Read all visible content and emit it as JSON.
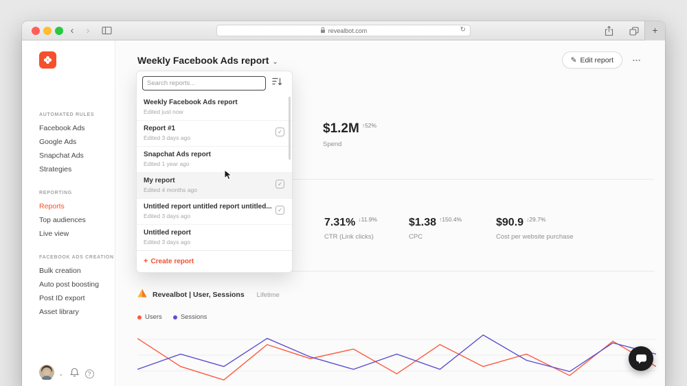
{
  "app": {
    "accent": "#f4502c"
  },
  "browser": {
    "url": "revealbot.com",
    "back": "‹",
    "forward": "›",
    "refresh": "↻",
    "new_tab": "+",
    "traffic_lights": [
      "#ff5f57",
      "#febc2e",
      "#28c840"
    ]
  },
  "sidebar": {
    "sections": [
      {
        "title": "AUTOMATED RULES",
        "items": [
          {
            "label": "Facebook Ads"
          },
          {
            "label": "Google Ads"
          },
          {
            "label": "Snapchat Ads"
          },
          {
            "label": "Strategies"
          }
        ]
      },
      {
        "title": "REPORTING",
        "items": [
          {
            "label": "Reports",
            "active": true
          },
          {
            "label": "Top audiences"
          },
          {
            "label": "Live view"
          }
        ]
      },
      {
        "title": "FACEBOOK ADS CREATION",
        "items": [
          {
            "label": "Bulk creation"
          },
          {
            "label": "Auto post boosting"
          },
          {
            "label": "Post ID export"
          },
          {
            "label": "Asset library"
          }
        ]
      }
    ]
  },
  "header": {
    "title": "Weekly Facebook Ads report",
    "chevron": "⌄",
    "edit_icon": "✎",
    "edit_label": "Edit report",
    "more_label": "…"
  },
  "reports_dropdown": {
    "search_placeholder": "Search reports...",
    "items": [
      {
        "name": "Weekly Facebook Ads report",
        "edited": "Edited just now",
        "scheduled": false,
        "hover": false
      },
      {
        "name": "Report #1",
        "edited": "Edited 3 days ago",
        "scheduled": true,
        "hover": false
      },
      {
        "name": "Snapchat Ads report",
        "edited": "Edited 1 year ago",
        "scheduled": false,
        "hover": false
      },
      {
        "name": "My report",
        "edited": "Edited 4 months ago",
        "scheduled": true,
        "hover": true
      },
      {
        "name": "Untitled report untitled report untitled...",
        "edited": "Edited 3 days ago",
        "scheduled": true,
        "hover": false
      },
      {
        "name": "Untitled report",
        "edited": "Edited 3 days ago",
        "scheduled": false,
        "hover": false
      }
    ],
    "create_plus": "+",
    "create_label": "Create report",
    "scheduled_check": "✓"
  },
  "metrics": {
    "row1_partial_fragment": "%",
    "row1": [
      {
        "value": "$1.2M",
        "delta": "↑52%",
        "label": "Spend"
      }
    ],
    "row2": [
      {
        "value": "7.31%",
        "delta": "↓11.9%",
        "label": "CTR (Link clicks)"
      },
      {
        "value": "$1.38",
        "delta": "↑150.4%",
        "label": "CPC"
      },
      {
        "value": "$90.9",
        "delta": "↓29.7%",
        "label": "Cost per website purchase"
      }
    ]
  },
  "analytics": {
    "source_title": "Revealbot | User, Sessions",
    "period": "Lifetime",
    "legend": [
      {
        "label": "Users",
        "color": "#ff5a3c"
      },
      {
        "label": "Sessions",
        "color": "#5b4fd1"
      }
    ]
  },
  "chart_data": {
    "type": "line",
    "title": "Revealbot | User, Sessions",
    "xlabel": "",
    "ylabel": "",
    "x": [
      1,
      2,
      3,
      4,
      5,
      6,
      7,
      8,
      9,
      10,
      11,
      12,
      13
    ],
    "series": [
      {
        "name": "Users",
        "color": "#ff5a3c",
        "values": [
          92,
          42,
          18,
          81,
          56,
          73,
          29,
          81,
          42,
          64,
          26,
          87,
          42
        ]
      },
      {
        "name": "Sessions",
        "color": "#5b4fd1",
        "values": [
          37,
          64,
          42,
          92,
          59,
          37,
          64,
          37,
          98,
          53,
          33,
          84,
          64
        ]
      }
    ],
    "ylim": [
      0,
      100
    ],
    "grid": "horizontal",
    "legend_position": "top-left"
  }
}
